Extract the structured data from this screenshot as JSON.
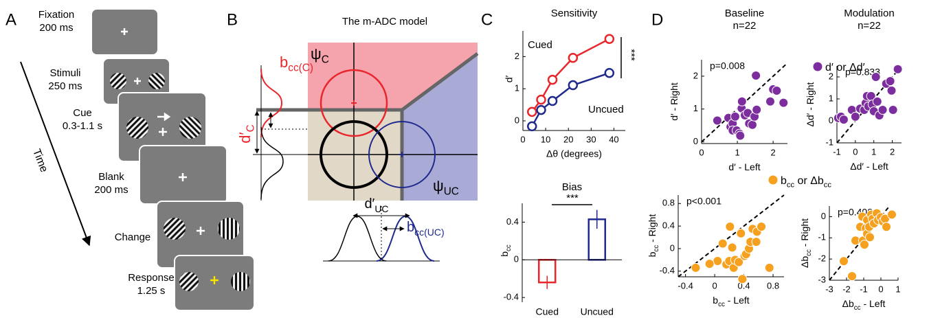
{
  "panel_labels": [
    "A",
    "B",
    "C",
    "D"
  ],
  "panel_a": {
    "axis": "Time",
    "steps": [
      {
        "name": "Fixation",
        "duration": "200 ms"
      },
      {
        "name": "Stimuli",
        "duration": "250 ms"
      },
      {
        "name": "Cue",
        "duration": "0.3-1.1 s"
      },
      {
        "name": "Blank",
        "duration": "200 ms"
      },
      {
        "name": "Change"
      },
      {
        "name": "Response",
        "duration": "1.25 s"
      }
    ]
  },
  "panel_b": {
    "title": "The m-ADC model",
    "psi_c": [
      "ψ",
      "C"
    ],
    "psi_uc": [
      "ψ",
      "UC"
    ],
    "b_cc_c": [
      "b",
      "cc(C)"
    ],
    "d_c": [
      "d′",
      "C"
    ],
    "d_uc": [
      "d′",
      "UC"
    ],
    "b_cc_uc": [
      "b",
      "cc(UC)"
    ]
  },
  "chart_data": [
    {
      "type": "line",
      "title": "Sensitivity",
      "x_label": "Δθ (degrees)",
      "y_label": "d′",
      "x": [
        4,
        8,
        13,
        22,
        38
      ],
      "xlim": [
        0,
        45
      ],
      "xticks": [
        0,
        10,
        20,
        30,
        40
      ],
      "ylim": [
        -0.3,
        2.8
      ],
      "yticks": [
        0,
        1,
        2
      ],
      "annotation": "***",
      "series": [
        {
          "name": "Cued",
          "color": "#e8262b",
          "values": [
            0.28,
            0.66,
            1.28,
            1.96,
            2.55
          ]
        },
        {
          "name": "Uncued",
          "color": "#1f2a8c",
          "values": [
            -0.17,
            0.34,
            0.62,
            1.11,
            1.49
          ]
        }
      ]
    },
    {
      "type": "bar",
      "title": "Bias",
      "y_label": [
        "b",
        "cc"
      ],
      "annotation": "***",
      "categories": [
        "Cued",
        "Uncued"
      ],
      "values": [
        -0.24,
        0.43
      ],
      "errors": [
        0.07,
        0.1
      ],
      "colors": [
        "#e8262b",
        "#1f2a8c"
      ],
      "ylim": [
        -0.45,
        0.6
      ],
      "yticks": [
        -0.4,
        0,
        0.4
      ]
    },
    {
      "type": "scatter",
      "title": "Baseline",
      "subtitle": "n=22",
      "annotation": "p=0.008",
      "x_label": [
        "d′ - Left"
      ],
      "y_label": [
        "d′ - Right"
      ],
      "xlim": [
        0,
        2.4
      ],
      "xticks": [
        0,
        1,
        2
      ],
      "ylim": [
        -0.05,
        2.5
      ],
      "yticks": [
        0,
        1,
        2
      ],
      "series": [
        {
          "name": [
            "d′ or Δd′"
          ],
          "color": "#7d2e9e",
          "x": [
            0.44,
            0.75,
            0.81,
            0.87,
            0.87,
            0.94,
            0.98,
            1.06,
            1.12,
            1.13,
            1.21,
            1.29,
            1.33,
            1.42,
            1.48,
            1.52,
            1.54,
            1.92,
            2.0,
            2.1,
            2.29,
            1.08
          ],
          "values": [
            0.65,
            0.73,
            0.46,
            0.56,
            0.35,
            0.77,
            0.35,
            0.25,
            1.02,
            1.23,
            0.81,
            0.88,
            0.56,
            0.52,
            0.77,
            2.02,
            0.98,
            1.23,
            1.6,
            1.56,
            1.19,
            0.19
          ]
        }
      ]
    },
    {
      "type": "scatter",
      "title": "Modulation",
      "subtitle": "n=22",
      "annotation": "p=0.833",
      "x_label": [
        "Δd′ - Left"
      ],
      "y_label": [
        "Δd′ - Right"
      ],
      "xlim": [
        -1,
        2.5
      ],
      "xticks": [
        -1,
        0,
        1,
        2
      ],
      "ylim": [
        -1,
        2.5
      ],
      "yticks": [
        -1,
        0,
        1,
        2
      ],
      "series": [
        {
          "color": "#7d2e9e",
          "x": [
            -0.93,
            -0.78,
            -0.63,
            -0.19,
            0,
            0.26,
            0.48,
            0.56,
            0.63,
            0.7,
            0.85,
            0.93,
            1.0,
            1.11,
            1.19,
            1.3,
            1.48,
            1.67,
            1.89,
            1.96,
            2.04,
            2.3
          ],
          "values": [
            0.13,
            0.19,
            0.06,
            0.5,
            0.19,
            0.56,
            0.5,
            0.81,
            1.13,
            0.66,
            1.13,
            0.75,
            0.44,
            2.0,
            0.88,
            0.25,
            0.5,
            1.69,
            1.81,
            1.38,
            0.5,
            2.35
          ]
        }
      ]
    },
    {
      "type": "scatter",
      "annotation": "p<0.001",
      "x_label": [
        "b",
        "cc",
        " - Left"
      ],
      "y_label": [
        "b",
        "cc",
        " - Right"
      ],
      "xlim": [
        -0.5,
        0.95
      ],
      "xticks": [
        -0.4,
        0,
        0.4,
        0.8
      ],
      "ylim": [
        -0.5,
        0.95
      ],
      "yticks": [
        -0.4,
        0,
        0.4,
        0.8
      ],
      "series": [
        {
          "name": [
            "b",
            "cc",
            " or Δb",
            "cc"
          ],
          "color": "#f5a01f",
          "x": [
            -0.26,
            0.04,
            0.11,
            0.16,
            0.21,
            0.2,
            0.24,
            0.26,
            0.28,
            0.33,
            0.36,
            0.38,
            0.41,
            0.43,
            0.47,
            0.49,
            0.52,
            0.57,
            0.58,
            0.64,
            0.75,
            -0.07
          ],
          "values": [
            -0.34,
            -0.22,
            0.09,
            -0.28,
            0.39,
            -0.22,
            0.02,
            -0.34,
            -0.2,
            -0.24,
            0.27,
            -0.54,
            -0.13,
            -0.1,
            0,
            0.12,
            0.35,
            0.12,
            0.3,
            0.39,
            -0.34,
            -0.27
          ]
        }
      ]
    },
    {
      "type": "scatter",
      "annotation": "p=0.408",
      "x_label": [
        "Δb",
        "cc",
        " - Left"
      ],
      "y_label": [
        "Δb",
        "cc",
        " - Right"
      ],
      "xlim": [
        -3,
        1
      ],
      "xticks": [
        -3,
        -2,
        -1,
        0,
        1
      ],
      "ylim": [
        -3,
        0.5
      ],
      "yticks": [
        -3,
        -2,
        -1,
        0
      ],
      "series": [
        {
          "color": "#f5a01f",
          "x": [
            -2.16,
            -1.68,
            -1.48,
            -1.2,
            -1.08,
            -1.04,
            -0.96,
            -0.88,
            -0.8,
            -0.8,
            -0.68,
            -0.64,
            -0.56,
            -0.48,
            -0.4,
            -0.24,
            -0.16,
            0,
            0.12,
            0.24,
            0.32,
            0.64
          ],
          "values": [
            -2.1,
            -2.81,
            -1.13,
            -0.48,
            0,
            -1.13,
            -1.32,
            -0.55,
            -0.16,
            -0.81,
            -0.48,
            -0.97,
            0.1,
            -0.1,
            -0.32,
            0.16,
            -0.16,
            -0.03,
            -0.23,
            -0.1,
            -0.48,
            0.1
          ]
        }
      ]
    }
  ]
}
